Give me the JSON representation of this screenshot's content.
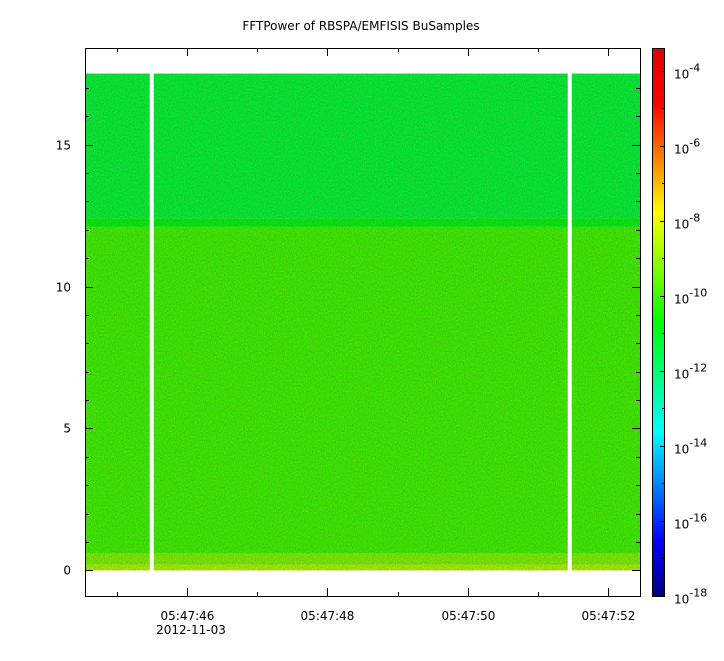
{
  "chart_data": {
    "type": "heatmap",
    "title": "FFTPower of RBSPA/EMFISIS  BuSamples",
    "xlabel": "",
    "ylabel": "",
    "y": {
      "range": [
        -0.9,
        18.4
      ],
      "ticks": [
        0,
        5,
        10,
        15
      ],
      "tick_labels": [
        "0",
        "5",
        "10",
        "15"
      ]
    },
    "x": {
      "range": [
        "05:47:44.55",
        "05:47:52.45"
      ],
      "minor_ticks": [
        "05:47:45",
        "05:47:47",
        "05:47:49",
        "05:47:51"
      ],
      "major_ticks": [
        "05:47:46",
        "05:47:48",
        "05:47:50",
        "05:47:52"
      ],
      "tick_labels": [
        "05:47:46",
        "05:47:48",
        "05:47:50",
        "05:47:52"
      ],
      "date_label": "2012-11-03"
    },
    "colorbar": {
      "scale": "log",
      "range": [
        "1e-18",
        "1e-3.4"
      ],
      "ticks": [
        {
          "mantissa": "10",
          "exponent": "-4"
        },
        {
          "mantissa": "10",
          "exponent": "-6"
        },
        {
          "mantissa": "10",
          "exponent": "-8"
        },
        {
          "mantissa": "10",
          "exponent": "-10"
        },
        {
          "mantissa": "10",
          "exponent": "-12"
        },
        {
          "mantissa": "10",
          "exponent": "-14"
        },
        {
          "mantissa": "10",
          "exponent": "-16"
        },
        {
          "mantissa": "10",
          "exponent": "-18"
        }
      ],
      "colormap": [
        "#00007f",
        "#0000ff",
        "#007fff",
        "#00ffff",
        "#00ff7f",
        "#00ff00",
        "#7fff00",
        "#ffff00",
        "#ff7f00",
        "#ff0000",
        "#e00000"
      ]
    },
    "data_extent": {
      "freq_max": 17.5,
      "time_start": "05:47:44.55",
      "time_end": "05:47:52.45"
    },
    "gaps": [
      "05:47:45.5",
      "05:47:51.45"
    ],
    "bands": [
      {
        "from": 0,
        "to": 0.2,
        "level": -8.7
      },
      {
        "from": 0.2,
        "to": 0.6,
        "level": -9.3
      },
      {
        "from": 0.6,
        "to": 12.1,
        "level": -10.0
      },
      {
        "from": 12.1,
        "to": 12.4,
        "level": -10.8
      },
      {
        "from": 12.4,
        "to": 17.5,
        "level": -11.3
      }
    ]
  }
}
